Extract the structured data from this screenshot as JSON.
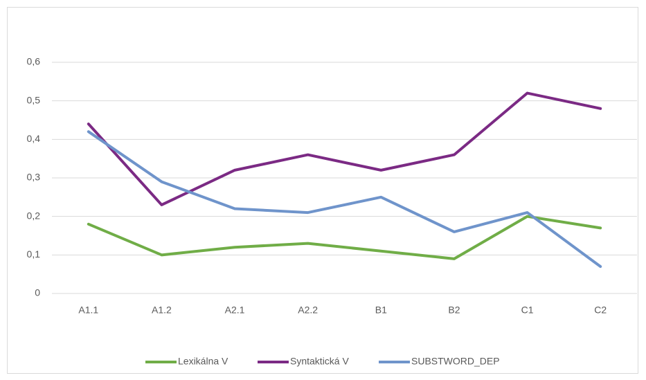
{
  "chart_data": {
    "type": "line",
    "categories": [
      "A1.1",
      "A1.2",
      "A2.1",
      "A2.2",
      "B1",
      "B2",
      "C1",
      "C2"
    ],
    "series": [
      {
        "name": "Lexikálna V",
        "color": "#70ad47",
        "values": [
          0.18,
          0.1,
          0.12,
          0.13,
          0.11,
          0.09,
          0.2,
          0.17
        ]
      },
      {
        "name": "Syntaktická V",
        "color": "#7b2a84",
        "values": [
          0.44,
          0.23,
          0.32,
          0.36,
          0.32,
          0.36,
          0.52,
          0.48
        ]
      },
      {
        "name": "SUBSTWORD_DEP",
        "color": "#6f94cb",
        "values": [
          0.42,
          0.29,
          0.22,
          0.21,
          0.25,
          0.16,
          0.21,
          0.07
        ]
      }
    ],
    "ylim": [
      0,
      0.6
    ],
    "yticks": [
      0,
      {
        "value": 0.1,
        "label": "0,1"
      },
      {
        "value": 0.2,
        "label": "0,2"
      },
      {
        "value": 0.3,
        "label": "0,3"
      },
      {
        "value": 0.4,
        "label": "0,4"
      },
      {
        "value": 0.5,
        "label": "0,5"
      },
      {
        "value": 0.6,
        "label": "0,6"
      }
    ],
    "grid": true,
    "legend": "bottom"
  }
}
